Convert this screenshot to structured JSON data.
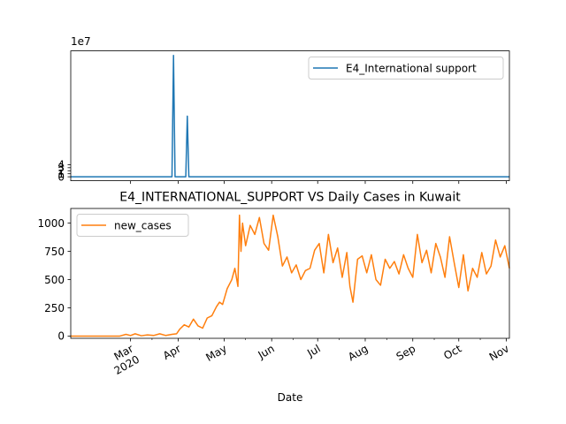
{
  "chart_data": [
    {
      "type": "line",
      "title": "",
      "xlabel": "",
      "ylabel": "",
      "y_offset_label": "1e7",
      "ylim": [
        -1.3,
        41.5
      ],
      "yticks": [
        0,
        1,
        2,
        3,
        4
      ],
      "ytick_labels": [
        "0",
        "1",
        "2",
        "3",
        "4"
      ],
      "grid": false,
      "legend_position": "upper right",
      "shares_x_axis_with_lower_panel": true,
      "series": [
        {
          "name": "E4_International support",
          "color": "#1f77b4",
          "x": [
            "2020-01-22",
            "2020-03-28",
            "2020-03-29",
            "2020-03-30",
            "2020-04-06",
            "2020-04-07",
            "2020-04-08",
            "2020-11-03"
          ],
          "y": [
            0,
            0,
            40,
            0,
            0,
            20,
            0,
            0
          ]
        }
      ]
    },
    {
      "type": "line",
      "title": "E4_INTERNATIONAL_SUPPORT VS Daily Cases in Kuwait",
      "xlabel": "Date",
      "ylabel": "",
      "ylim": [
        -20,
        1130
      ],
      "yticks": [
        0,
        250,
        500,
        750,
        1000
      ],
      "ytick_labels": [
        "0",
        "250",
        "500",
        "750",
        "1000"
      ],
      "xlim": [
        "2020-01-22",
        "2020-11-03"
      ],
      "xticks": [
        "2020-03-01",
        "2020-04-01",
        "2020-05-01",
        "2020-06-01",
        "2020-07-01",
        "2020-08-01",
        "2020-09-01",
        "2020-10-01",
        "2020-11-01"
      ],
      "xtick_labels": [
        "Mar\n2020",
        "Apr",
        "May",
        "Jun",
        "Jul",
        "Aug",
        "Sep",
        "Oct",
        "Nov"
      ],
      "grid": false,
      "legend_position": "upper left",
      "series": [
        {
          "name": "new_cases",
          "color": "#ff7f0e",
          "x": [
            "2020-01-22",
            "2020-02-23",
            "2020-02-27",
            "2020-03-01",
            "2020-03-04",
            "2020-03-08",
            "2020-03-12",
            "2020-03-16",
            "2020-03-20",
            "2020-03-24",
            "2020-03-28",
            "2020-03-31",
            "2020-04-02",
            "2020-04-05",
            "2020-04-08",
            "2020-04-11",
            "2020-04-14",
            "2020-04-17",
            "2020-04-20",
            "2020-04-23",
            "2020-04-26",
            "2020-04-28",
            "2020-04-30",
            "2020-05-03",
            "2020-05-06",
            "2020-05-08",
            "2020-05-10",
            "2020-05-11",
            "2020-05-12",
            "2020-05-13",
            "2020-05-15",
            "2020-05-18",
            "2020-05-21",
            "2020-05-24",
            "2020-05-27",
            "2020-05-30",
            "2020-06-02",
            "2020-06-05",
            "2020-06-08",
            "2020-06-11",
            "2020-06-14",
            "2020-06-17",
            "2020-06-20",
            "2020-06-23",
            "2020-06-26",
            "2020-06-29",
            "2020-07-02",
            "2020-07-05",
            "2020-07-08",
            "2020-07-11",
            "2020-07-14",
            "2020-07-17",
            "2020-07-20",
            "2020-07-22",
            "2020-07-24",
            "2020-07-27",
            "2020-07-30",
            "2020-08-02",
            "2020-08-05",
            "2020-08-08",
            "2020-08-11",
            "2020-08-14",
            "2020-08-17",
            "2020-08-20",
            "2020-08-23",
            "2020-08-26",
            "2020-08-29",
            "2020-09-01",
            "2020-09-04",
            "2020-09-07",
            "2020-09-10",
            "2020-09-13",
            "2020-09-16",
            "2020-09-19",
            "2020-09-22",
            "2020-09-25",
            "2020-09-28",
            "2020-10-01",
            "2020-10-04",
            "2020-10-07",
            "2020-10-10",
            "2020-10-13",
            "2020-10-16",
            "2020-10-19",
            "2020-10-22",
            "2020-10-25",
            "2020-10-28",
            "2020-10-31",
            "2020-11-03"
          ],
          "y": [
            0,
            0,
            15,
            5,
            20,
            3,
            10,
            5,
            20,
            5,
            15,
            20,
            60,
            100,
            80,
            150,
            90,
            70,
            160,
            180,
            260,
            300,
            280,
            420,
            500,
            600,
            440,
            1070,
            750,
            1000,
            800,
            980,
            900,
            1050,
            820,
            760,
            1070,
            880,
            620,
            700,
            560,
            630,
            500,
            580,
            600,
            760,
            820,
            560,
            900,
            650,
            780,
            520,
            740,
            440,
            300,
            680,
            710,
            560,
            720,
            500,
            450,
            680,
            600,
            660,
            550,
            720,
            600,
            520,
            900,
            650,
            760,
            560,
            820,
            700,
            520,
            880,
            650,
            430,
            720,
            400,
            600,
            520,
            740,
            550,
            620,
            850,
            700,
            800,
            600
          ]
        }
      ]
    }
  ]
}
